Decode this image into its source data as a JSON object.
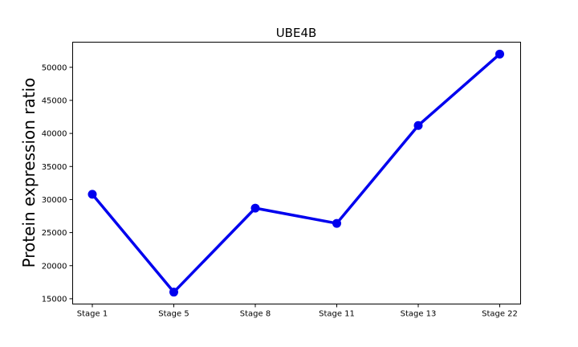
{
  "chart_data": {
    "type": "line",
    "title": "UBE4B",
    "xlabel": "",
    "ylabel": "Protein expression ratio",
    "categories": [
      "Stage 1",
      "Stage 5",
      "Stage 8",
      "Stage 11",
      "Stage 13",
      "Stage 22"
    ],
    "series": [
      {
        "values": [
          30800,
          16000,
          28700,
          26400,
          41200,
          52000
        ],
        "color": "#0000ee"
      }
    ],
    "yticks": [
      15000,
      20000,
      25000,
      30000,
      35000,
      40000,
      45000,
      50000
    ],
    "ylim": [
      14200,
      53800
    ],
    "grid": false,
    "legend": "none",
    "markers": "filled-circle"
  }
}
